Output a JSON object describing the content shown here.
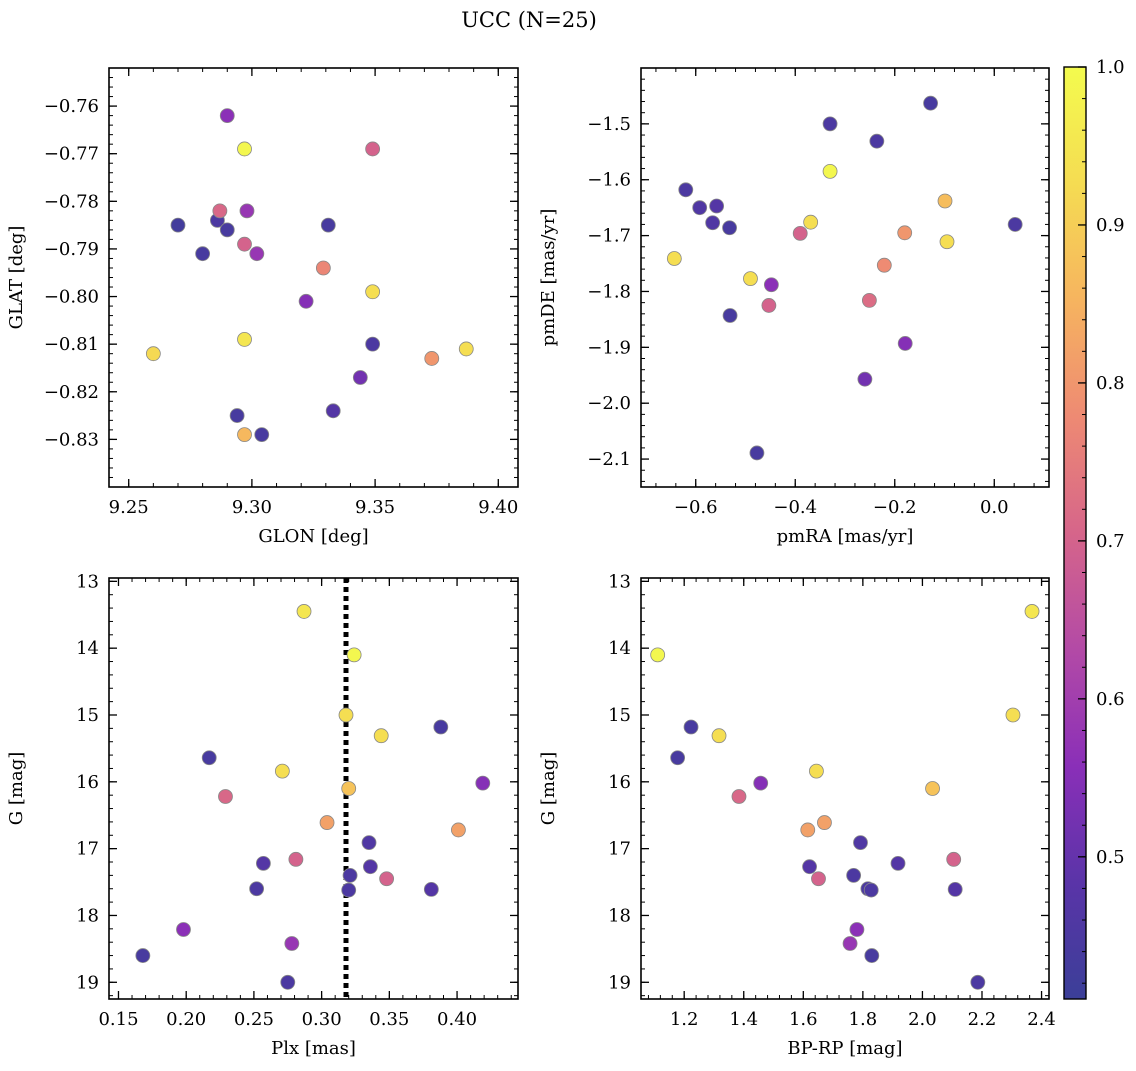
{
  "figure_title": "UCC (N=25)",
  "colorbar": {
    "range": [
      0.41,
      1.0
    ],
    "ticks": [
      0.5,
      0.6,
      0.7,
      0.8,
      0.9,
      1.0
    ],
    "tick_labels": [
      "0.5",
      "0.6",
      "0.7",
      "0.8",
      "0.9",
      "1.0"
    ],
    "colormap": "plasma",
    "stops": [
      "#3b3f98",
      "#5a34a8",
      "#8a2fb8",
      "#b34aa6",
      "#d6658a",
      "#ee8a73",
      "#f6b45f",
      "#f5dc52",
      "#f3fb4e"
    ]
  },
  "marker_edge_color": "#888888",
  "chart_data": [
    {
      "type": "scatter",
      "title": "",
      "xlabel": "GLON [deg]",
      "ylabel": "GLAT [deg]",
      "xlim": [
        9.242,
        9.408
      ],
      "ylim": [
        -0.84,
        -0.752
      ],
      "y_inverted": false,
      "xticks": [
        9.25,
        9.3,
        9.35,
        9.4
      ],
      "xtick_labels": [
        "9.25",
        "9.30",
        "9.35",
        "9.40"
      ],
      "yticks": [
        -0.76,
        -0.77,
        -0.78,
        -0.79,
        -0.8,
        -0.81,
        -0.82,
        -0.83
      ],
      "ytick_labels": [
        "−0.76",
        "−0.77",
        "−0.78",
        "−0.79",
        "−0.80",
        "−0.81",
        "−0.82",
        "−0.83"
      ],
      "points": [
        {
          "x": 9.29,
          "y": -0.762,
          "c": 0.56
        },
        {
          "x": 9.297,
          "y": -0.769,
          "c": 0.99
        },
        {
          "x": 9.349,
          "y": -0.769,
          "c": 0.7
        },
        {
          "x": 9.27,
          "y": -0.785,
          "c": 0.43
        },
        {
          "x": 9.286,
          "y": -0.784,
          "c": 0.45
        },
        {
          "x": 9.29,
          "y": -0.786,
          "c": 0.44
        },
        {
          "x": 9.287,
          "y": -0.782,
          "c": 0.71
        },
        {
          "x": 9.298,
          "y": -0.782,
          "c": 0.58
        },
        {
          "x": 9.331,
          "y": -0.785,
          "c": 0.44
        },
        {
          "x": 9.28,
          "y": -0.791,
          "c": 0.44
        },
        {
          "x": 9.297,
          "y": -0.789,
          "c": 0.7
        },
        {
          "x": 9.302,
          "y": -0.791,
          "c": 0.58
        },
        {
          "x": 9.329,
          "y": -0.794,
          "c": 0.77
        },
        {
          "x": 9.349,
          "y": -0.799,
          "c": 0.93
        },
        {
          "x": 9.322,
          "y": -0.801,
          "c": 0.55
        },
        {
          "x": 9.26,
          "y": -0.812,
          "c": 0.92
        },
        {
          "x": 9.297,
          "y": -0.809,
          "c": 0.95
        },
        {
          "x": 9.349,
          "y": -0.81,
          "c": 0.45
        },
        {
          "x": 9.387,
          "y": -0.811,
          "c": 0.93
        },
        {
          "x": 9.373,
          "y": -0.813,
          "c": 0.8
        },
        {
          "x": 9.344,
          "y": -0.817,
          "c": 0.52
        },
        {
          "x": 9.294,
          "y": -0.825,
          "c": 0.44
        },
        {
          "x": 9.333,
          "y": -0.824,
          "c": 0.47
        },
        {
          "x": 9.297,
          "y": -0.829,
          "c": 0.86
        },
        {
          "x": 9.304,
          "y": -0.829,
          "c": 0.44
        }
      ]
    },
    {
      "type": "scatter",
      "title": "",
      "xlabel": "pmRA [mas/yr]",
      "ylabel": "pmDE [mas/yr]",
      "xlim": [
        -0.71,
        0.11
      ],
      "ylim": [
        -2.15,
        -1.4
      ],
      "y_inverted": false,
      "xticks": [
        -0.6,
        -0.4,
        -0.2,
        0.0
      ],
      "xtick_labels": [
        "−0.6",
        "−0.4",
        "−0.2",
        "0.0"
      ],
      "yticks": [
        -1.5,
        -1.6,
        -1.7,
        -1.8,
        -1.9,
        -2.0,
        -2.1
      ],
      "ytick_labels": [
        "−1.5",
        "−1.6",
        "−1.7",
        "−1.8",
        "−1.9",
        "−2.0",
        "−2.1"
      ],
      "points": [
        {
          "x": -0.128,
          "y": -1.463,
          "c": 0.44
        },
        {
          "x": -0.33,
          "y": -1.5,
          "c": 0.45
        },
        {
          "x": -0.236,
          "y": -1.531,
          "c": 0.45
        },
        {
          "x": -0.33,
          "y": -1.585,
          "c": 0.99
        },
        {
          "x": -0.62,
          "y": -1.618,
          "c": 0.45
        },
        {
          "x": -0.592,
          "y": -1.65,
          "c": 0.46
        },
        {
          "x": -0.558,
          "y": -1.647,
          "c": 0.47
        },
        {
          "x": -0.566,
          "y": -1.677,
          "c": 0.46
        },
        {
          "x": -0.532,
          "y": -1.686,
          "c": 0.44
        },
        {
          "x": -0.099,
          "y": -1.638,
          "c": 0.87
        },
        {
          "x": -0.369,
          "y": -1.676,
          "c": 0.93
        },
        {
          "x": -0.39,
          "y": -1.696,
          "c": 0.7
        },
        {
          "x": -0.18,
          "y": -1.695,
          "c": 0.8
        },
        {
          "x": -0.095,
          "y": -1.711,
          "c": 0.93
        },
        {
          "x": 0.042,
          "y": -1.68,
          "c": 0.45
        },
        {
          "x": -0.643,
          "y": -1.741,
          "c": 0.93
        },
        {
          "x": -0.221,
          "y": -1.753,
          "c": 0.78
        },
        {
          "x": -0.49,
          "y": -1.777,
          "c": 0.93
        },
        {
          "x": -0.448,
          "y": -1.788,
          "c": 0.56
        },
        {
          "x": -0.453,
          "y": -1.825,
          "c": 0.7
        },
        {
          "x": -0.251,
          "y": -1.816,
          "c": 0.72
        },
        {
          "x": -0.531,
          "y": -1.843,
          "c": 0.44
        },
        {
          "x": -0.179,
          "y": -1.893,
          "c": 0.55
        },
        {
          "x": -0.26,
          "y": -1.957,
          "c": 0.52
        },
        {
          "x": -0.477,
          "y": -2.089,
          "c": 0.44
        }
      ]
    },
    {
      "type": "scatter",
      "title": "",
      "xlabel": "Plx [mas]",
      "ylabel": "G [mag]",
      "xlim": [
        0.143,
        0.445
      ],
      "ylim": [
        12.95,
        19.25
      ],
      "y_inverted": true,
      "vline": {
        "x": 0.318,
        "style": "dotted",
        "color": "#000000"
      },
      "xticks": [
        0.15,
        0.2,
        0.25,
        0.3,
        0.35,
        0.4
      ],
      "xtick_labels": [
        "0.15",
        "0.20",
        "0.25",
        "0.30",
        "0.35",
        "0.40"
      ],
      "yticks": [
        13,
        14,
        15,
        16,
        17,
        18,
        19
      ],
      "ytick_labels": [
        "13",
        "14",
        "15",
        "16",
        "17",
        "18",
        "19"
      ],
      "points": [
        {
          "x": 0.287,
          "y": 13.45,
          "c": 0.95
        },
        {
          "x": 0.324,
          "y": 14.1,
          "c": 0.99
        },
        {
          "x": 0.318,
          "y": 15.0,
          "c": 0.93
        },
        {
          "x": 0.344,
          "y": 15.31,
          "c": 0.93
        },
        {
          "x": 0.388,
          "y": 15.18,
          "c": 0.44
        },
        {
          "x": 0.217,
          "y": 15.64,
          "c": 0.44
        },
        {
          "x": 0.271,
          "y": 15.84,
          "c": 0.93
        },
        {
          "x": 0.32,
          "y": 16.1,
          "c": 0.88
        },
        {
          "x": 0.229,
          "y": 16.22,
          "c": 0.71
        },
        {
          "x": 0.419,
          "y": 16.02,
          "c": 0.55
        },
        {
          "x": 0.304,
          "y": 16.61,
          "c": 0.82
        },
        {
          "x": 0.401,
          "y": 16.72,
          "c": 0.82
        },
        {
          "x": 0.335,
          "y": 16.91,
          "c": 0.46
        },
        {
          "x": 0.281,
          "y": 17.16,
          "c": 0.7
        },
        {
          "x": 0.257,
          "y": 17.22,
          "c": 0.47
        },
        {
          "x": 0.336,
          "y": 17.27,
          "c": 0.47
        },
        {
          "x": 0.321,
          "y": 17.4,
          "c": 0.45
        },
        {
          "x": 0.348,
          "y": 17.45,
          "c": 0.7
        },
        {
          "x": 0.252,
          "y": 17.6,
          "c": 0.45
        },
        {
          "x": 0.32,
          "y": 17.62,
          "c": 0.45
        },
        {
          "x": 0.381,
          "y": 17.61,
          "c": 0.47
        },
        {
          "x": 0.198,
          "y": 18.21,
          "c": 0.56
        },
        {
          "x": 0.278,
          "y": 18.42,
          "c": 0.58
        },
        {
          "x": 0.168,
          "y": 18.6,
          "c": 0.44
        },
        {
          "x": 0.275,
          "y": 19.0,
          "c": 0.45
        }
      ]
    },
    {
      "type": "scatter",
      "title": "",
      "xlabel": "BP-RP [mag]",
      "ylabel": "G [mag]",
      "xlim": [
        1.055,
        2.425
      ],
      "ylim": [
        12.95,
        19.25
      ],
      "y_inverted": true,
      "xticks": [
        1.2,
        1.4,
        1.6,
        1.8,
        2.0,
        2.2,
        2.4
      ],
      "xtick_labels": [
        "1.2",
        "1.4",
        "1.6",
        "1.8",
        "2.0",
        "2.2",
        "2.4"
      ],
      "yticks": [
        13,
        14,
        15,
        16,
        17,
        18,
        19
      ],
      "ytick_labels": [
        "13",
        "14",
        "15",
        "16",
        "17",
        "18",
        "19"
      ],
      "points": [
        {
          "x": 2.368,
          "y": 13.45,
          "c": 0.95
        },
        {
          "x": 1.111,
          "y": 14.1,
          "c": 0.99
        },
        {
          "x": 2.304,
          "y": 15.0,
          "c": 0.93
        },
        {
          "x": 1.317,
          "y": 15.31,
          "c": 0.93
        },
        {
          "x": 1.223,
          "y": 15.18,
          "c": 0.44
        },
        {
          "x": 1.178,
          "y": 15.64,
          "c": 0.44
        },
        {
          "x": 1.644,
          "y": 15.84,
          "c": 0.93
        },
        {
          "x": 2.034,
          "y": 16.1,
          "c": 0.88
        },
        {
          "x": 1.384,
          "y": 16.22,
          "c": 0.71
        },
        {
          "x": 1.457,
          "y": 16.02,
          "c": 0.55
        },
        {
          "x": 1.671,
          "y": 16.61,
          "c": 0.82
        },
        {
          "x": 1.615,
          "y": 16.72,
          "c": 0.82
        },
        {
          "x": 1.792,
          "y": 16.91,
          "c": 0.46
        },
        {
          "x": 2.105,
          "y": 17.16,
          "c": 0.7
        },
        {
          "x": 1.918,
          "y": 17.22,
          "c": 0.47
        },
        {
          "x": 1.621,
          "y": 17.27,
          "c": 0.47
        },
        {
          "x": 1.769,
          "y": 17.4,
          "c": 0.45
        },
        {
          "x": 1.651,
          "y": 17.45,
          "c": 0.7
        },
        {
          "x": 1.817,
          "y": 17.6,
          "c": 0.45
        },
        {
          "x": 1.828,
          "y": 17.62,
          "c": 0.45
        },
        {
          "x": 2.11,
          "y": 17.61,
          "c": 0.47
        },
        {
          "x": 1.78,
          "y": 18.21,
          "c": 0.56
        },
        {
          "x": 1.757,
          "y": 18.42,
          "c": 0.58
        },
        {
          "x": 1.83,
          "y": 18.6,
          "c": 0.44
        },
        {
          "x": 2.186,
          "y": 19.0,
          "c": 0.45
        }
      ]
    }
  ]
}
